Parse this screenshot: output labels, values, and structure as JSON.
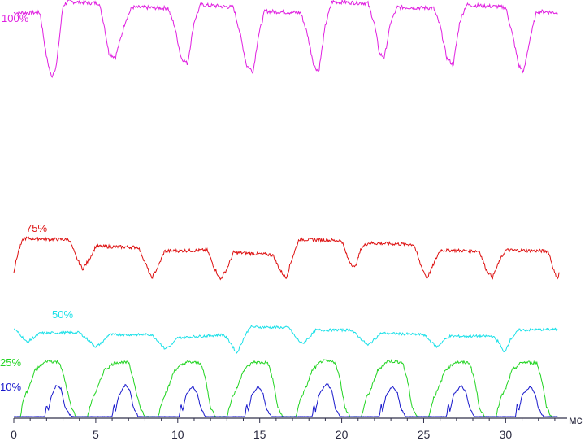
{
  "chart_data": {
    "type": "line",
    "xlim": [
      0,
      33.5
    ],
    "x_unit_label": "мс",
    "x_ticks": [
      0,
      5,
      10,
      15,
      20,
      25,
      30
    ],
    "grid": false,
    "legend": "inline labels at left of each trace",
    "series": [
      {
        "name": "100%",
        "color": "#e020e0",
        "noise": 0.05,
        "points": [
          [
            0,
            0.86
          ],
          [
            1.6,
            0.86
          ],
          [
            2.0,
            0.3
          ],
          [
            2.3,
            0.05
          ],
          [
            2.6,
            0.2
          ],
          [
            3.0,
            0.95
          ],
          [
            3.3,
            1.0
          ],
          [
            5.2,
            0.98
          ],
          [
            5.5,
            0.72
          ],
          [
            5.8,
            0.35
          ],
          [
            6.2,
            0.3
          ],
          [
            6.8,
            0.75
          ],
          [
            7.2,
            0.93
          ],
          [
            9.4,
            0.92
          ],
          [
            9.8,
            0.7
          ],
          [
            10.2,
            0.3
          ],
          [
            10.6,
            0.22
          ],
          [
            11.0,
            0.75
          ],
          [
            11.4,
            0.96
          ],
          [
            13.4,
            0.93
          ],
          [
            13.8,
            0.6
          ],
          [
            14.2,
            0.2
          ],
          [
            14.6,
            0.12
          ],
          [
            14.9,
            0.55
          ],
          [
            15.3,
            0.88
          ],
          [
            17.5,
            0.86
          ],
          [
            17.9,
            0.6
          ],
          [
            18.3,
            0.2
          ],
          [
            18.6,
            0.12
          ],
          [
            19.0,
            0.7
          ],
          [
            19.4,
            1.0
          ],
          [
            21.6,
            0.98
          ],
          [
            22.0,
            0.72
          ],
          [
            22.3,
            0.35
          ],
          [
            22.6,
            0.3
          ],
          [
            23.0,
            0.75
          ],
          [
            23.4,
            0.93
          ],
          [
            25.6,
            0.92
          ],
          [
            26.0,
            0.7
          ],
          [
            26.4,
            0.3
          ],
          [
            26.8,
            0.2
          ],
          [
            27.2,
            0.75
          ],
          [
            27.6,
            0.96
          ],
          [
            30.0,
            0.93
          ],
          [
            30.4,
            0.6
          ],
          [
            30.8,
            0.2
          ],
          [
            31.1,
            0.12
          ],
          [
            31.5,
            0.55
          ],
          [
            31.9,
            0.88
          ],
          [
            33.2,
            0.86
          ]
        ]
      },
      {
        "name": "75%",
        "color": "#dd1010",
        "noise": 0.07,
        "points": [
          [
            0,
            0.25
          ],
          [
            0.3,
            0.7
          ],
          [
            0.6,
            0.95
          ],
          [
            3.4,
            0.92
          ],
          [
            3.8,
            0.55
          ],
          [
            4.2,
            0.3
          ],
          [
            4.6,
            0.5
          ],
          [
            5.0,
            0.78
          ],
          [
            7.6,
            0.76
          ],
          [
            8.0,
            0.45
          ],
          [
            8.4,
            0.1
          ],
          [
            8.8,
            0.35
          ],
          [
            9.2,
            0.68
          ],
          [
            11.8,
            0.7
          ],
          [
            12.2,
            0.35
          ],
          [
            12.6,
            0.08
          ],
          [
            13.0,
            0.3
          ],
          [
            13.4,
            0.65
          ],
          [
            15.8,
            0.6
          ],
          [
            16.2,
            0.3
          ],
          [
            16.6,
            0.1
          ],
          [
            17.0,
            0.55
          ],
          [
            17.4,
            0.93
          ],
          [
            20.0,
            0.9
          ],
          [
            20.4,
            0.5
          ],
          [
            20.8,
            0.32
          ],
          [
            21.2,
            0.75
          ],
          [
            21.6,
            0.85
          ],
          [
            24.4,
            0.82
          ],
          [
            24.8,
            0.4
          ],
          [
            25.2,
            0.1
          ],
          [
            25.6,
            0.4
          ],
          [
            26.0,
            0.7
          ],
          [
            28.4,
            0.68
          ],
          [
            28.8,
            0.3
          ],
          [
            29.2,
            0.12
          ],
          [
            29.6,
            0.45
          ],
          [
            30.0,
            0.7
          ],
          [
            32.6,
            0.68
          ],
          [
            33.0,
            0.2
          ],
          [
            33.2,
            0.1
          ],
          [
            33.3,
            0.3
          ]
        ]
      },
      {
        "name": "50%",
        "color": "#18e0e8",
        "noise": 0.08,
        "points": [
          [
            0,
            0.85
          ],
          [
            0.4,
            0.65
          ],
          [
            0.8,
            0.4
          ],
          [
            1.2,
            0.55
          ],
          [
            1.6,
            0.7
          ],
          [
            4.0,
            0.72
          ],
          [
            4.6,
            0.45
          ],
          [
            5.0,
            0.25
          ],
          [
            5.4,
            0.4
          ],
          [
            5.8,
            0.65
          ],
          [
            8.4,
            0.65
          ],
          [
            8.8,
            0.45
          ],
          [
            9.2,
            0.2
          ],
          [
            9.6,
            0.3
          ],
          [
            10.0,
            0.55
          ],
          [
            12.8,
            0.65
          ],
          [
            13.2,
            0.4
          ],
          [
            13.6,
            0.05
          ],
          [
            14.0,
            0.5
          ],
          [
            14.4,
            0.9
          ],
          [
            16.8,
            0.88
          ],
          [
            17.2,
            0.55
          ],
          [
            17.6,
            0.35
          ],
          [
            18.0,
            0.55
          ],
          [
            18.4,
            0.8
          ],
          [
            20.6,
            0.8
          ],
          [
            21.0,
            0.6
          ],
          [
            21.6,
            0.3
          ],
          [
            22.0,
            0.5
          ],
          [
            22.4,
            0.7
          ],
          [
            25.0,
            0.65
          ],
          [
            25.4,
            0.45
          ],
          [
            25.8,
            0.25
          ],
          [
            26.2,
            0.45
          ],
          [
            26.6,
            0.6
          ],
          [
            29.2,
            0.6
          ],
          [
            29.6,
            0.4
          ],
          [
            29.9,
            0.05
          ],
          [
            30.3,
            0.5
          ],
          [
            30.8,
            0.8
          ],
          [
            33.2,
            0.82
          ]
        ]
      },
      {
        "name": "25%",
        "color": "#22d422",
        "noise": 0.05,
        "points": [
          [
            0,
            0.0
          ],
          [
            0.4,
            0.0
          ],
          [
            0.6,
            0.3
          ],
          [
            0.9,
            0.45
          ],
          [
            1.3,
            0.75
          ],
          [
            2.0,
            0.9
          ],
          [
            2.8,
            0.88
          ],
          [
            3.1,
            0.6
          ],
          [
            3.5,
            0.15
          ],
          [
            3.8,
            0.0
          ],
          [
            4.5,
            0.0
          ],
          [
            4.8,
            0.3
          ],
          [
            5.1,
            0.45
          ],
          [
            5.5,
            0.75
          ],
          [
            6.2,
            0.88
          ],
          [
            7.0,
            0.87
          ],
          [
            7.3,
            0.6
          ],
          [
            7.7,
            0.15
          ],
          [
            8.0,
            0.0
          ],
          [
            8.8,
            0.0
          ],
          [
            9.1,
            0.3
          ],
          [
            9.4,
            0.45
          ],
          [
            9.8,
            0.75
          ],
          [
            10.5,
            0.88
          ],
          [
            11.4,
            0.87
          ],
          [
            11.7,
            0.6
          ],
          [
            12.0,
            0.15
          ],
          [
            12.3,
            0.0
          ],
          [
            13.0,
            0.0
          ],
          [
            13.3,
            0.3
          ],
          [
            13.6,
            0.45
          ],
          [
            14.0,
            0.75
          ],
          [
            14.6,
            0.88
          ],
          [
            15.5,
            0.87
          ],
          [
            15.8,
            0.6
          ],
          [
            16.1,
            0.15
          ],
          [
            16.4,
            0.0
          ],
          [
            17.2,
            0.0
          ],
          [
            17.5,
            0.3
          ],
          [
            17.8,
            0.45
          ],
          [
            18.2,
            0.75
          ],
          [
            18.8,
            0.9
          ],
          [
            19.6,
            0.88
          ],
          [
            19.9,
            0.6
          ],
          [
            20.2,
            0.15
          ],
          [
            20.5,
            0.0
          ],
          [
            21.2,
            0.0
          ],
          [
            21.5,
            0.3
          ],
          [
            21.8,
            0.45
          ],
          [
            22.2,
            0.75
          ],
          [
            22.8,
            0.9
          ],
          [
            23.7,
            0.88
          ],
          [
            24.0,
            0.6
          ],
          [
            24.3,
            0.15
          ],
          [
            24.6,
            0.0
          ],
          [
            25.3,
            0.0
          ],
          [
            25.6,
            0.3
          ],
          [
            25.9,
            0.45
          ],
          [
            26.3,
            0.75
          ],
          [
            26.9,
            0.88
          ],
          [
            27.8,
            0.87
          ],
          [
            28.1,
            0.6
          ],
          [
            28.4,
            0.15
          ],
          [
            28.7,
            0.0
          ],
          [
            29.4,
            0.0
          ],
          [
            29.7,
            0.3
          ],
          [
            30.0,
            0.45
          ],
          [
            30.4,
            0.75
          ],
          [
            31.0,
            0.88
          ],
          [
            31.9,
            0.87
          ],
          [
            32.2,
            0.6
          ],
          [
            32.5,
            0.15
          ],
          [
            32.8,
            0.0
          ],
          [
            33.2,
            0.0
          ]
        ]
      },
      {
        "name": "10%",
        "color": "#1818cc",
        "noise": 0.04,
        "points": [
          [
            0,
            0.0
          ],
          [
            1.9,
            0.0
          ],
          [
            2.0,
            0.3
          ],
          [
            2.1,
            0.12
          ],
          [
            2.3,
            0.5
          ],
          [
            2.6,
            0.75
          ],
          [
            2.9,
            0.65
          ],
          [
            3.1,
            0.25
          ],
          [
            3.4,
            0.05
          ],
          [
            3.6,
            0.0
          ],
          [
            6.0,
            0.0
          ],
          [
            6.1,
            0.3
          ],
          [
            6.2,
            0.12
          ],
          [
            6.4,
            0.5
          ],
          [
            6.8,
            0.75
          ],
          [
            7.1,
            0.6
          ],
          [
            7.3,
            0.2
          ],
          [
            7.6,
            0.0
          ],
          [
            10.1,
            0.0
          ],
          [
            10.2,
            0.3
          ],
          [
            10.3,
            0.12
          ],
          [
            10.5,
            0.5
          ],
          [
            10.9,
            0.72
          ],
          [
            11.2,
            0.55
          ],
          [
            11.4,
            0.2
          ],
          [
            11.7,
            0.0
          ],
          [
            14.1,
            0.0
          ],
          [
            14.2,
            0.3
          ],
          [
            14.3,
            0.12
          ],
          [
            14.5,
            0.5
          ],
          [
            14.9,
            0.72
          ],
          [
            15.2,
            0.55
          ],
          [
            15.4,
            0.2
          ],
          [
            15.7,
            0.0
          ],
          [
            18.2,
            0.0
          ],
          [
            18.3,
            0.3
          ],
          [
            18.4,
            0.12
          ],
          [
            18.6,
            0.5
          ],
          [
            19.1,
            0.8
          ],
          [
            19.4,
            0.6
          ],
          [
            19.6,
            0.2
          ],
          [
            19.9,
            0.0
          ],
          [
            22.3,
            0.0
          ],
          [
            22.4,
            0.3
          ],
          [
            22.5,
            0.12
          ],
          [
            22.7,
            0.5
          ],
          [
            23.1,
            0.72
          ],
          [
            23.4,
            0.55
          ],
          [
            23.6,
            0.2
          ],
          [
            23.9,
            0.0
          ],
          [
            26.4,
            0.0
          ],
          [
            26.5,
            0.3
          ],
          [
            26.6,
            0.12
          ],
          [
            26.8,
            0.5
          ],
          [
            27.3,
            0.75
          ],
          [
            27.6,
            0.55
          ],
          [
            27.8,
            0.2
          ],
          [
            28.1,
            0.0
          ],
          [
            30.6,
            0.0
          ],
          [
            30.7,
            0.3
          ],
          [
            30.8,
            0.12
          ],
          [
            31.0,
            0.5
          ],
          [
            31.5,
            0.72
          ],
          [
            31.8,
            0.55
          ],
          [
            32.0,
            0.2
          ],
          [
            32.3,
            0.0
          ],
          [
            33.2,
            0.0
          ]
        ]
      }
    ]
  }
}
